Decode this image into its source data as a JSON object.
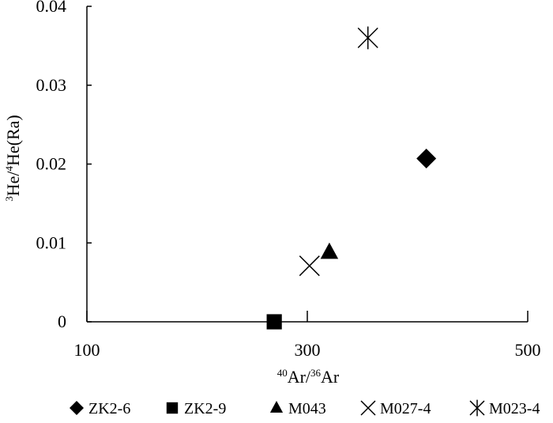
{
  "chart_data": {
    "type": "scatter",
    "xlim": [
      100,
      500
    ],
    "ylim": [
      0,
      0.04
    ],
    "x_ticks": [
      100,
      300,
      500
    ],
    "x_tick_labels": [
      "100",
      "300",
      "500"
    ],
    "y_ticks": [
      0,
      0.01,
      0.02,
      0.03,
      0.04
    ],
    "y_tick_labels": [
      "0",
      "0.01",
      "0.02",
      "0.03",
      "0.04"
    ],
    "xlabel": {
      "sup1": "40",
      "part1": "Ar/",
      "sup2": "36",
      "part2": "Ar"
    },
    "ylabel": {
      "sup1": "3",
      "part1": "He/",
      "sup2": "4",
      "part2": "He(Ra)"
    },
    "grid": false,
    "legend_position": "bottom",
    "series": [
      {
        "name": "ZK2-6",
        "marker": "diamond",
        "x": [
          408
        ],
        "y": [
          0.0207
        ]
      },
      {
        "name": "ZK2-9",
        "marker": "square",
        "x": [
          270
        ],
        "y": [
          0.0
        ]
      },
      {
        "name": "M043",
        "marker": "triangle",
        "x": [
          320
        ],
        "y": [
          0.0088
        ]
      },
      {
        "name": "M027-4",
        "marker": "x",
        "x": [
          302
        ],
        "y": [
          0.0071
        ]
      },
      {
        "name": "M023-4",
        "marker": "asterisk",
        "x": [
          355
        ],
        "y": [
          0.036
        ]
      }
    ]
  }
}
